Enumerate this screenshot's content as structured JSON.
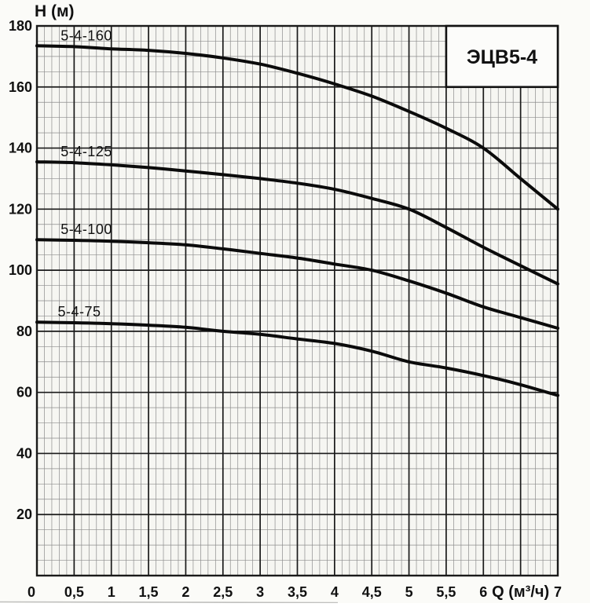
{
  "chart_data": {
    "type": "line",
    "title": "ЭЦВ5-4",
    "ylabel": "H (м)",
    "xlabel": "Q (м³/ч)",
    "xlim": [
      0,
      7
    ],
    "ylim": [
      0,
      180
    ],
    "grid": {
      "on": true,
      "x_major": 0.5,
      "x_minor": 0.1,
      "y_major": 20,
      "y_minor": 5
    },
    "legend_position": "inline-curve-labels",
    "x_ticks": [
      {
        "q": 0,
        "label": "0"
      },
      {
        "q": 0.5,
        "label": "0,5"
      },
      {
        "q": 1,
        "label": "1"
      },
      {
        "q": 1.5,
        "label": "1,5"
      },
      {
        "q": 2,
        "label": "2"
      },
      {
        "q": 2.5,
        "label": "2,5"
      },
      {
        "q": 3,
        "label": "3"
      },
      {
        "q": 3.5,
        "label": "3,5"
      },
      {
        "q": 4,
        "label": "4"
      },
      {
        "q": 4.5,
        "label": "4,5"
      },
      {
        "q": 5,
        "label": "5"
      },
      {
        "q": 5.5,
        "label": "5,5"
      },
      {
        "q": 6,
        "label": "6"
      },
      {
        "q": 7,
        "label": "7"
      }
    ],
    "x_unit_label": {
      "q": 6.5,
      "label": "Q (м³/ч)"
    },
    "y_ticks": [
      20,
      40,
      60,
      80,
      100,
      120,
      140,
      160,
      180
    ],
    "series": [
      {
        "name": "5-4-160",
        "points": [
          [
            0,
            173.5
          ],
          [
            0.5,
            173.2
          ],
          [
            1,
            172.5
          ],
          [
            1.5,
            172
          ],
          [
            2,
            171
          ],
          [
            2.5,
            169.5
          ],
          [
            3,
            167.5
          ],
          [
            3.5,
            164.5
          ],
          [
            4,
            161
          ],
          [
            4.5,
            157
          ],
          [
            5,
            152
          ],
          [
            5.5,
            146.5
          ],
          [
            6,
            140
          ],
          [
            6.5,
            130
          ],
          [
            7,
            120
          ]
        ],
        "label_q": 0.32
      },
      {
        "name": "5-4-125",
        "points": [
          [
            0,
            135.5
          ],
          [
            0.5,
            135.2
          ],
          [
            1,
            134.5
          ],
          [
            1.5,
            133.6
          ],
          [
            2,
            132.5
          ],
          [
            2.5,
            131.3
          ],
          [
            3,
            130
          ],
          [
            3.5,
            128.5
          ],
          [
            4,
            126.5
          ],
          [
            4.5,
            123.5
          ],
          [
            5,
            120
          ],
          [
            5.5,
            114
          ],
          [
            6,
            107.5
          ],
          [
            6.5,
            101.5
          ],
          [
            7,
            95.5
          ]
        ],
        "label_q": 0.32
      },
      {
        "name": "5-4-100",
        "points": [
          [
            0,
            110
          ],
          [
            0.5,
            109.8
          ],
          [
            1,
            109.5
          ],
          [
            1.5,
            109
          ],
          [
            2,
            108.3
          ],
          [
            2.5,
            107
          ],
          [
            3,
            105.5
          ],
          [
            3.5,
            104
          ],
          [
            4,
            102
          ],
          [
            4.5,
            100
          ],
          [
            5,
            96.5
          ],
          [
            5.5,
            92.5
          ],
          [
            6,
            88
          ],
          [
            6.5,
            84.5
          ],
          [
            7,
            81
          ]
        ],
        "label_q": 0.32
      },
      {
        "name": "5-4-75",
        "points": [
          [
            0,
            83
          ],
          [
            0.5,
            82.8
          ],
          [
            1,
            82.5
          ],
          [
            1.5,
            82
          ],
          [
            2,
            81.3
          ],
          [
            2.5,
            80
          ],
          [
            3,
            79
          ],
          [
            3.5,
            77.5
          ],
          [
            4,
            76
          ],
          [
            4.5,
            73.5
          ],
          [
            5,
            70
          ],
          [
            5.5,
            68
          ],
          [
            6,
            65.5
          ],
          [
            6.5,
            62.5
          ],
          [
            7,
            59
          ]
        ],
        "label_q": 0.28
      }
    ],
    "title_box": {
      "q_range": [
        5.5,
        7
      ],
      "h_range": [
        160,
        180
      ]
    },
    "colors": {
      "curve": "#0b0b0b",
      "grid_major": "#1a1a1a",
      "grid_minor": "#8d8d8d",
      "text": "#111111",
      "paper": "#fbfbf8",
      "plot_bg": "#f6f6f2",
      "box_fill": "#fcfcfa"
    }
  }
}
